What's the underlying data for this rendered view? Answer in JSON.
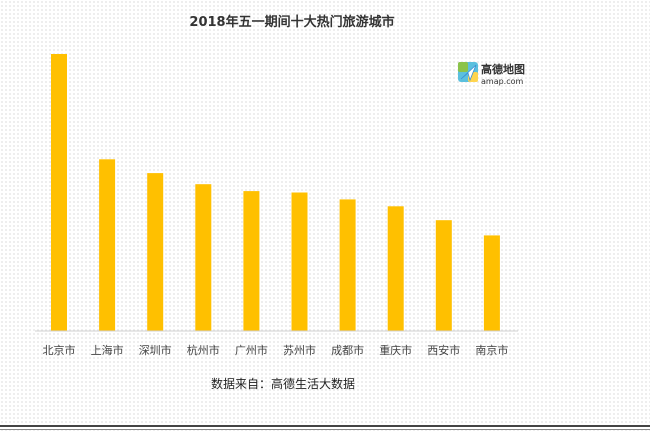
{
  "chart_data": {
    "type": "bar",
    "title": "2018年五一期间十大热门旅游城市",
    "categories": [
      "北京市",
      "上海市",
      "深圳市",
      "杭州市",
      "广州市",
      "苏州市",
      "成都市",
      "重庆市",
      "西安市",
      "南京市"
    ],
    "values": [
      100,
      62,
      57,
      53,
      50.5,
      50,
      47.5,
      45,
      40,
      34.5
    ],
    "ylim": [
      0,
      100
    ],
    "grid": false,
    "bar_color": "#ffc000",
    "source_note": "数据来自：高德生活大数据"
  },
  "logo": {
    "name_cn": "高德地图",
    "name_en": "amap.com"
  }
}
